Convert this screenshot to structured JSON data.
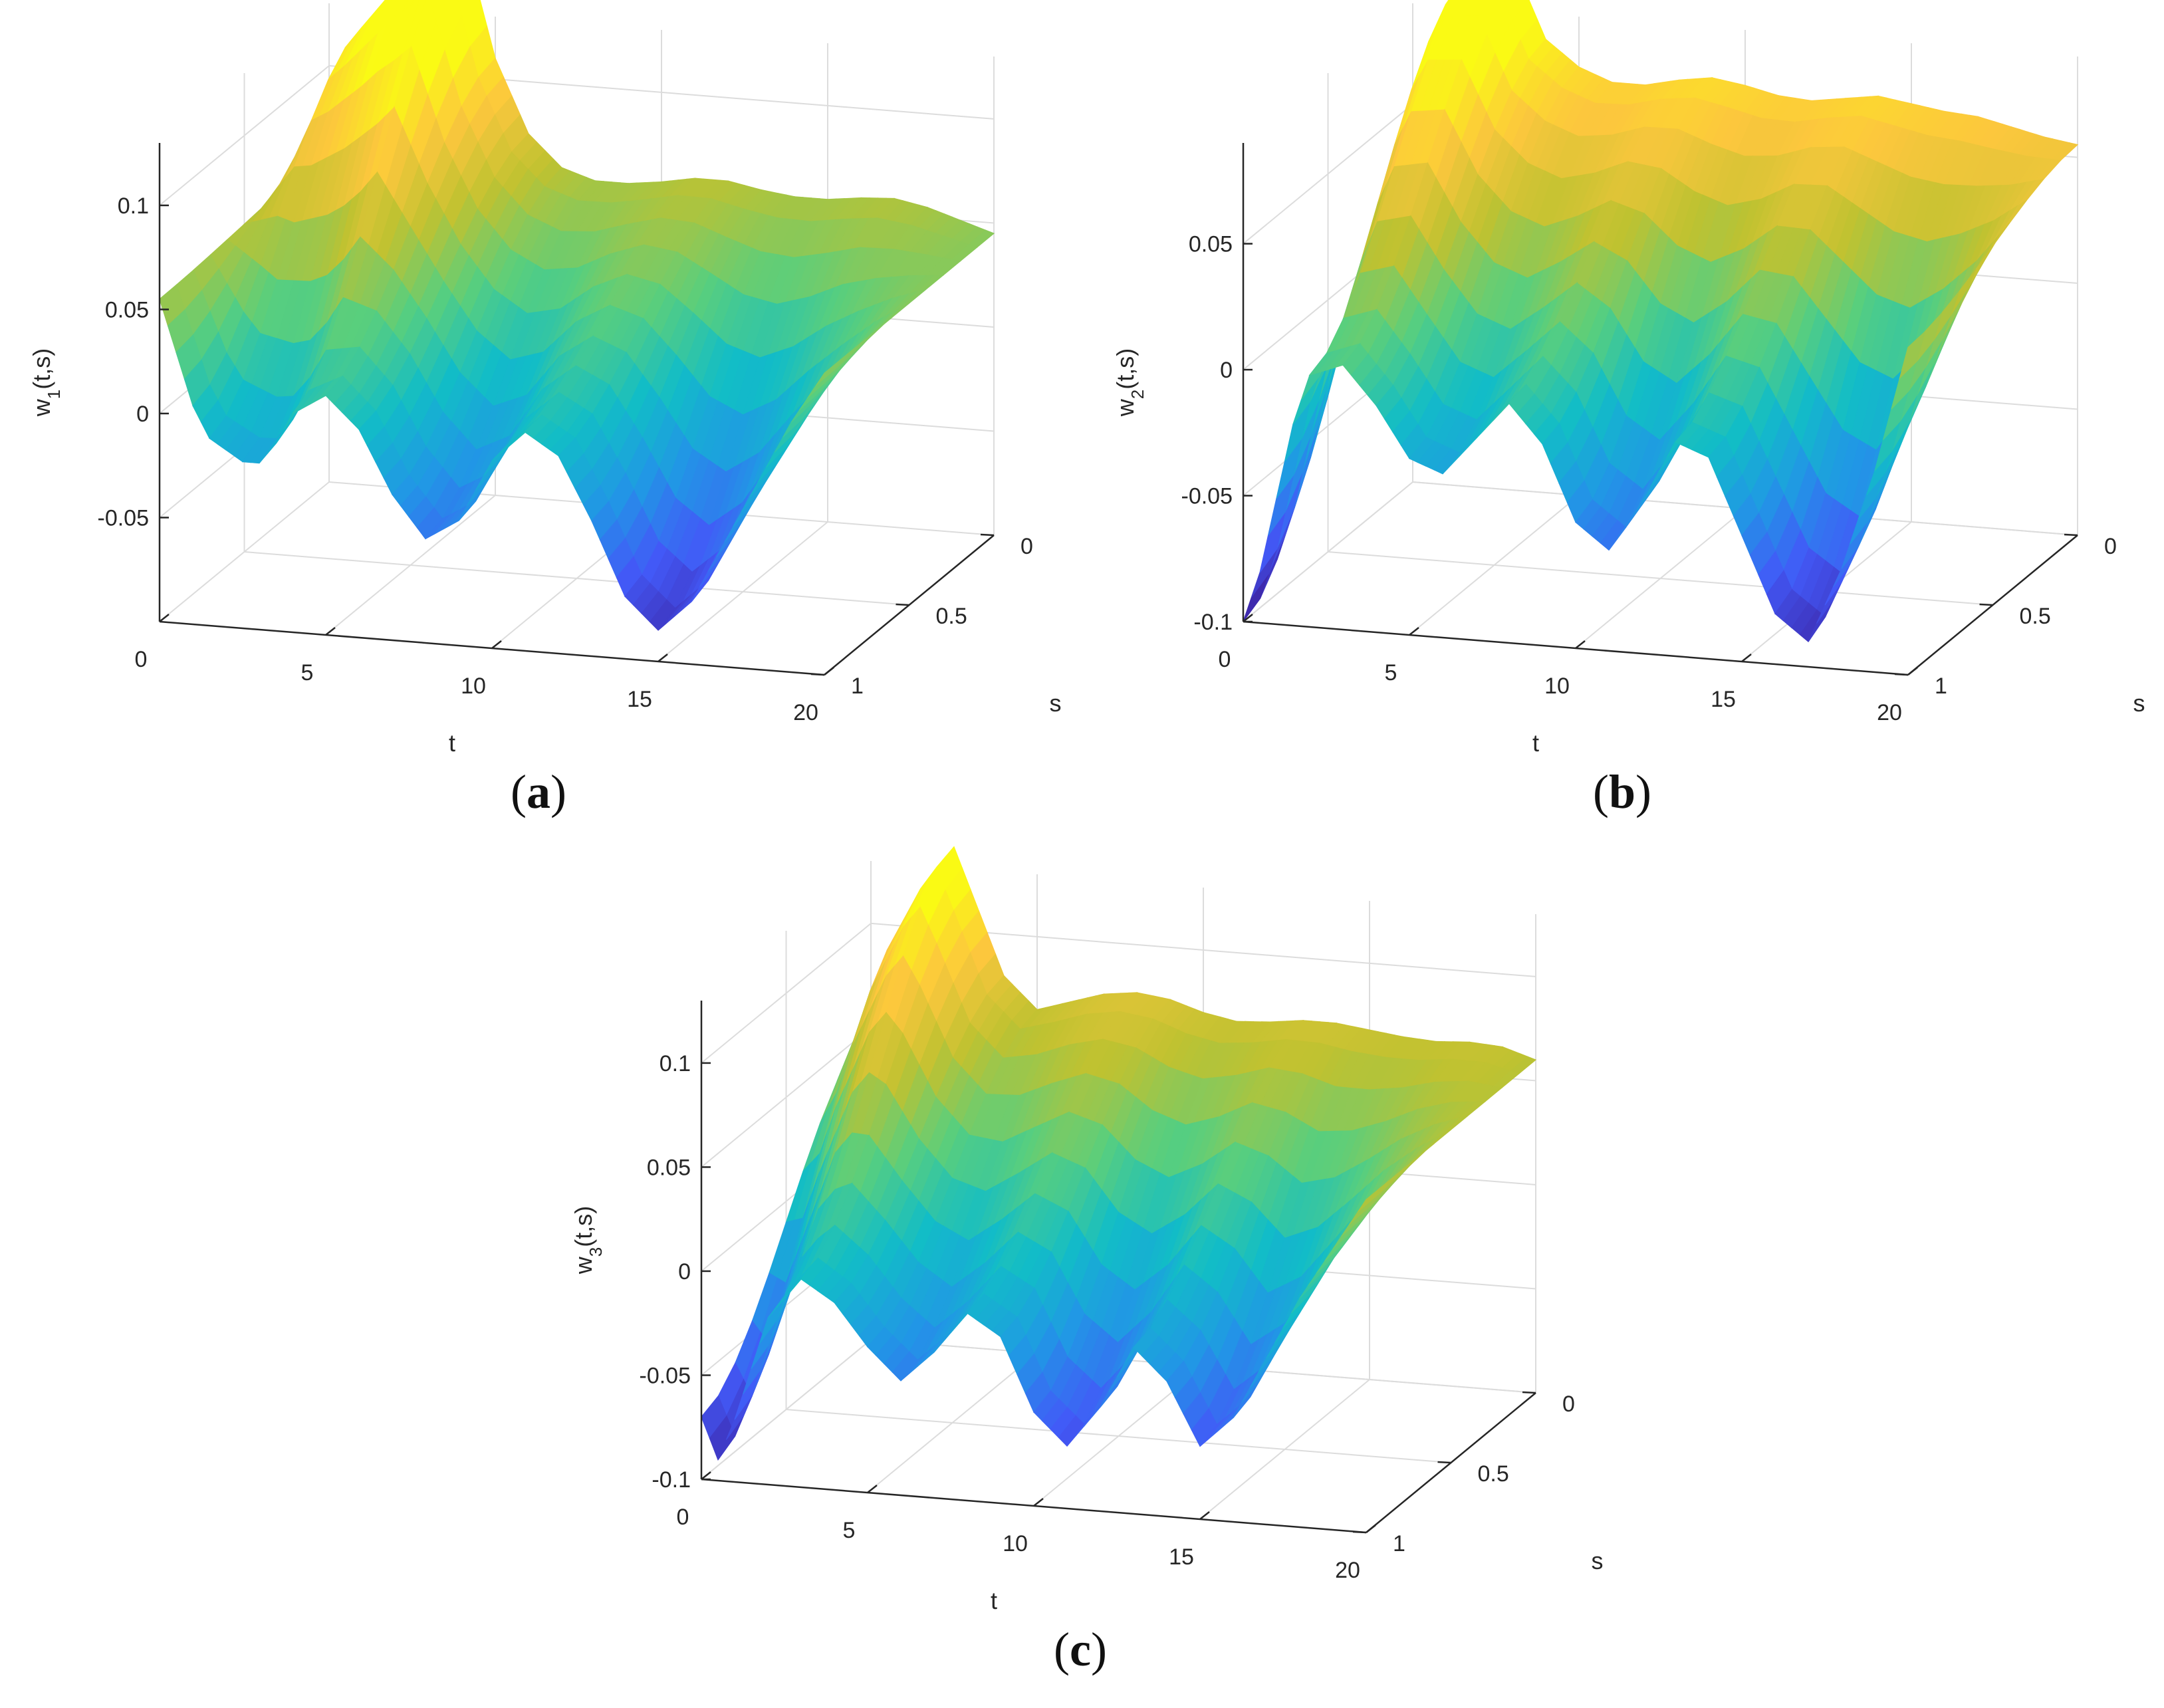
{
  "chart_data": [
    {
      "type": "surface",
      "id": "a",
      "caption_letter": "a",
      "zlabel_main": "w",
      "zlabel_sub": "1",
      "zlabel_rest": "(t,s)",
      "xlabel": "t",
      "ylabel": "s",
      "xlim": [
        0,
        20
      ],
      "ylim": [
        0,
        1
      ],
      "zlim": [
        -0.1,
        0.13
      ],
      "xticks": [
        "0",
        "5",
        "10",
        "15",
        "20"
      ],
      "yticks": [
        "0",
        "0.5",
        "1"
      ],
      "zticks": [
        "-0.05",
        "0",
        "0.05",
        "0.1"
      ],
      "profile_s0": [
        [
          0,
          0.06
        ],
        [
          1,
          0.12
        ],
        [
          2,
          0.14
        ],
        [
          3,
          0.16
        ],
        [
          4,
          0.17
        ],
        [
          5,
          0.11
        ],
        [
          6,
          0.075
        ],
        [
          7,
          0.06
        ],
        [
          8,
          0.055
        ],
        [
          9,
          0.055
        ],
        [
          10,
          0.057
        ],
        [
          11,
          0.06
        ],
        [
          12,
          0.06
        ],
        [
          13,
          0.057
        ],
        [
          14,
          0.055
        ],
        [
          15,
          0.055
        ],
        [
          16,
          0.057
        ],
        [
          17,
          0.058
        ],
        [
          18,
          0.055
        ],
        [
          19,
          0.05
        ],
        [
          20,
          0.045
        ]
      ],
      "profile_s1": [
        [
          0,
          0.055
        ],
        [
          0.5,
          0.03
        ],
        [
          1,
          0.005
        ],
        [
          1.5,
          -0.01
        ],
        [
          2,
          -0.015
        ],
        [
          2.5,
          -0.02
        ],
        [
          3,
          -0.02
        ],
        [
          3.5,
          -0.01
        ],
        [
          4,
          0.005
        ],
        [
          5,
          0.015
        ],
        [
          6,
          0.0
        ],
        [
          7,
          -0.03
        ],
        [
          8,
          -0.05
        ],
        [
          9,
          -0.04
        ],
        [
          10,
          -0.01
        ],
        [
          11,
          0.005
        ],
        [
          12,
          -0.005
        ],
        [
          13,
          -0.035
        ],
        [
          14,
          -0.07
        ],
        [
          15,
          -0.085
        ],
        [
          16,
          -0.07
        ],
        [
          17,
          -0.04
        ],
        [
          18,
          -0.01
        ],
        [
          19,
          0.02
        ],
        [
          20,
          0.045
        ]
      ]
    },
    {
      "type": "surface",
      "id": "b",
      "caption_letter": "b",
      "zlabel_main": "w",
      "zlabel_sub": "2",
      "zlabel_rest": "(t,s)",
      "xlabel": "t",
      "ylabel": "s",
      "xlim": [
        0,
        20
      ],
      "ylim": [
        0,
        1
      ],
      "zlim": [
        -0.1,
        0.09
      ],
      "xticks": [
        "0",
        "5",
        "10",
        "15",
        "20"
      ],
      "yticks": [
        "0",
        "0.5",
        "1"
      ],
      "zticks": [
        "-0.1",
        "-0.05",
        "0",
        "0.05"
      ],
      "profile_s0": [
        [
          0,
          0.03
        ],
        [
          1,
          0.08
        ],
        [
          1.5,
          0.1
        ],
        [
          2,
          0.11
        ],
        [
          3,
          0.11
        ],
        [
          4,
          0.08
        ],
        [
          5,
          0.07
        ],
        [
          6,
          0.065
        ],
        [
          7,
          0.065
        ],
        [
          8,
          0.068
        ],
        [
          9,
          0.07
        ],
        [
          10,
          0.068
        ],
        [
          11,
          0.065
        ],
        [
          12,
          0.064
        ],
        [
          13,
          0.066
        ],
        [
          14,
          0.068
        ],
        [
          15,
          0.066
        ],
        [
          16,
          0.064
        ],
        [
          17,
          0.063
        ],
        [
          18,
          0.06
        ],
        [
          19,
          0.057
        ],
        [
          20,
          0.055
        ]
      ],
      "profile_s1": [
        [
          0,
          -0.1
        ],
        [
          0.5,
          -0.08
        ],
        [
          1,
          -0.05
        ],
        [
          1.5,
          -0.02
        ],
        [
          2,
          0.0
        ],
        [
          3,
          0.005
        ],
        [
          4,
          -0.01
        ],
        [
          5,
          -0.03
        ],
        [
          6,
          -0.035
        ],
        [
          7,
          -0.02
        ],
        [
          8,
          -0.005
        ],
        [
          9,
          -0.02
        ],
        [
          10,
          -0.05
        ],
        [
          11,
          -0.06
        ],
        [
          12,
          -0.04
        ],
        [
          13,
          -0.015
        ],
        [
          14,
          -0.02
        ],
        [
          15,
          -0.05
        ],
        [
          16,
          -0.08
        ],
        [
          17,
          -0.09
        ],
        [
          18,
          -0.06
        ],
        [
          19,
          -0.02
        ],
        [
          20,
          0.03
        ]
      ]
    },
    {
      "type": "surface",
      "id": "c",
      "caption_letter": "c",
      "zlabel_main": "w",
      "zlabel_sub": "3",
      "zlabel_rest": "(t,s)",
      "xlabel": "t",
      "ylabel": "s",
      "xlim": [
        0,
        20
      ],
      "ylim": [
        0,
        1
      ],
      "zlim": [
        -0.1,
        0.13
      ],
      "xticks": [
        "0",
        "5",
        "10",
        "15",
        "20"
      ],
      "yticks": [
        "0",
        "0.5",
        "1"
      ],
      "zticks": [
        "-0.1",
        "-0.05",
        "0",
        "0.05",
        "0.1"
      ],
      "profile_s0": [
        [
          0,
          0.05
        ],
        [
          1,
          0.1
        ],
        [
          2,
          0.13
        ],
        [
          2.5,
          0.14
        ],
        [
          3,
          0.12
        ],
        [
          4,
          0.08
        ],
        [
          5,
          0.065
        ],
        [
          6,
          0.07
        ],
        [
          7,
          0.075
        ],
        [
          8,
          0.077
        ],
        [
          9,
          0.075
        ],
        [
          10,
          0.07
        ],
        [
          11,
          0.067
        ],
        [
          12,
          0.068
        ],
        [
          13,
          0.07
        ],
        [
          14,
          0.07
        ],
        [
          15,
          0.068
        ],
        [
          16,
          0.066
        ],
        [
          17,
          0.065
        ],
        [
          18,
          0.066
        ],
        [
          19,
          0.065
        ],
        [
          20,
          0.06
        ]
      ],
      "profile_s1": [
        [
          0,
          -0.07
        ],
        [
          0.5,
          -0.09
        ],
        [
          1,
          -0.07
        ],
        [
          2,
          -0.02
        ],
        [
          3,
          0.0
        ],
        [
          4,
          -0.01
        ],
        [
          5,
          -0.03
        ],
        [
          6,
          -0.045
        ],
        [
          7,
          -0.03
        ],
        [
          8,
          -0.01
        ],
        [
          9,
          -0.02
        ],
        [
          10,
          -0.055
        ],
        [
          11,
          -0.07
        ],
        [
          12,
          -0.05
        ],
        [
          13,
          -0.02
        ],
        [
          14,
          -0.035
        ],
        [
          15,
          -0.065
        ],
        [
          16,
          -0.05
        ],
        [
          17,
          -0.02
        ],
        [
          18,
          0.01
        ],
        [
          19,
          0.035
        ],
        [
          20,
          0.06
        ]
      ]
    }
  ]
}
